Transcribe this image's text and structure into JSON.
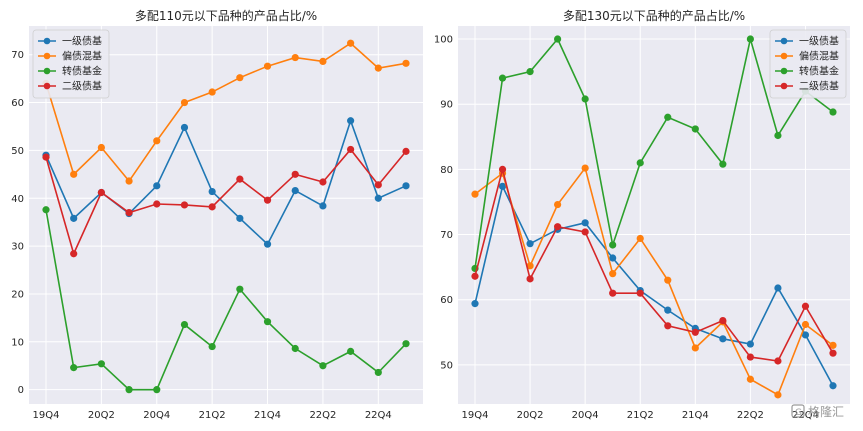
{
  "chart_data": [
    {
      "type": "line",
      "title": "多配110元以下品种的产品占比/%",
      "x_ticks": [
        "19Q4",
        "20Q2",
        "20Q4",
        "21Q2",
        "21Q4",
        "22Q2",
        "22Q4"
      ],
      "ylim": [
        -3,
        76
      ],
      "y_ticks": [
        0,
        10,
        20,
        30,
        40,
        50,
        60,
        70
      ],
      "grid": true,
      "legend_position": "top-left",
      "series": [
        {
          "name": "一级债基",
          "color": "#1f77b4",
          "values": [
            49.0,
            35.8,
            41.2,
            36.8,
            42.6,
            54.8,
            41.4,
            35.8,
            30.4,
            41.6,
            38.4,
            56.2,
            40.0,
            42.6
          ]
        },
        {
          "name": "偏债混基",
          "color": "#ff7f0e",
          "values": [
            64.0,
            45.0,
            50.6,
            43.6,
            52.0,
            60.0,
            62.2,
            65.2,
            67.6,
            69.4,
            68.6,
            72.4,
            67.2,
            68.2
          ]
        },
        {
          "name": "转债基金",
          "color": "#2ca02c",
          "values": [
            37.6,
            4.6,
            5.4,
            0.0,
            0.0,
            13.6,
            9.0,
            21.0,
            14.2,
            8.6,
            5.0,
            8.0,
            3.6,
            9.6
          ]
        },
        {
          "name": "二级债基",
          "color": "#d62728",
          "values": [
            48.6,
            28.4,
            41.2,
            37.0,
            38.8,
            38.6,
            38.2,
            44.0,
            39.6,
            45.0,
            43.4,
            50.2,
            42.8,
            49.8
          ]
        }
      ]
    },
    {
      "type": "line",
      "title": "多配130元以下品种的产品占比/%",
      "x_ticks": [
        "19Q4",
        "20Q2",
        "20Q4",
        "21Q2",
        "21Q4",
        "22Q2",
        "22Q4"
      ],
      "ylim": [
        44,
        102
      ],
      "y_ticks": [
        50,
        60,
        70,
        80,
        90,
        100
      ],
      "grid": true,
      "legend_position": "top-right",
      "series": [
        {
          "name": "一级债基",
          "color": "#1f77b4",
          "values": [
            59.4,
            77.4,
            68.6,
            70.8,
            71.8,
            66.4,
            61.4,
            58.4,
            55.6,
            54.0,
            53.2,
            61.8,
            54.6,
            46.8
          ]
        },
        {
          "name": "偏债混基",
          "color": "#ff7f0e",
          "values": [
            76.2,
            79.4,
            65.2,
            74.6,
            80.2,
            64.0,
            69.4,
            63.0,
            52.6,
            56.6,
            47.8,
            45.4,
            56.2,
            53.0
          ]
        },
        {
          "name": "转债基金",
          "color": "#2ca02c",
          "values": [
            64.8,
            94.0,
            95.0,
            100.0,
            90.8,
            68.4,
            81.0,
            88.0,
            86.2,
            80.8,
            100.0,
            85.2,
            92.0,
            88.8
          ]
        },
        {
          "name": "二级债基",
          "color": "#d62728",
          "values": [
            63.6,
            80.0,
            63.2,
            71.2,
            70.4,
            61.0,
            61.0,
            56.0,
            55.0,
            56.8,
            51.2,
            50.6,
            59.0,
            51.8
          ]
        }
      ]
    }
  ],
  "watermark": "格隆汇"
}
